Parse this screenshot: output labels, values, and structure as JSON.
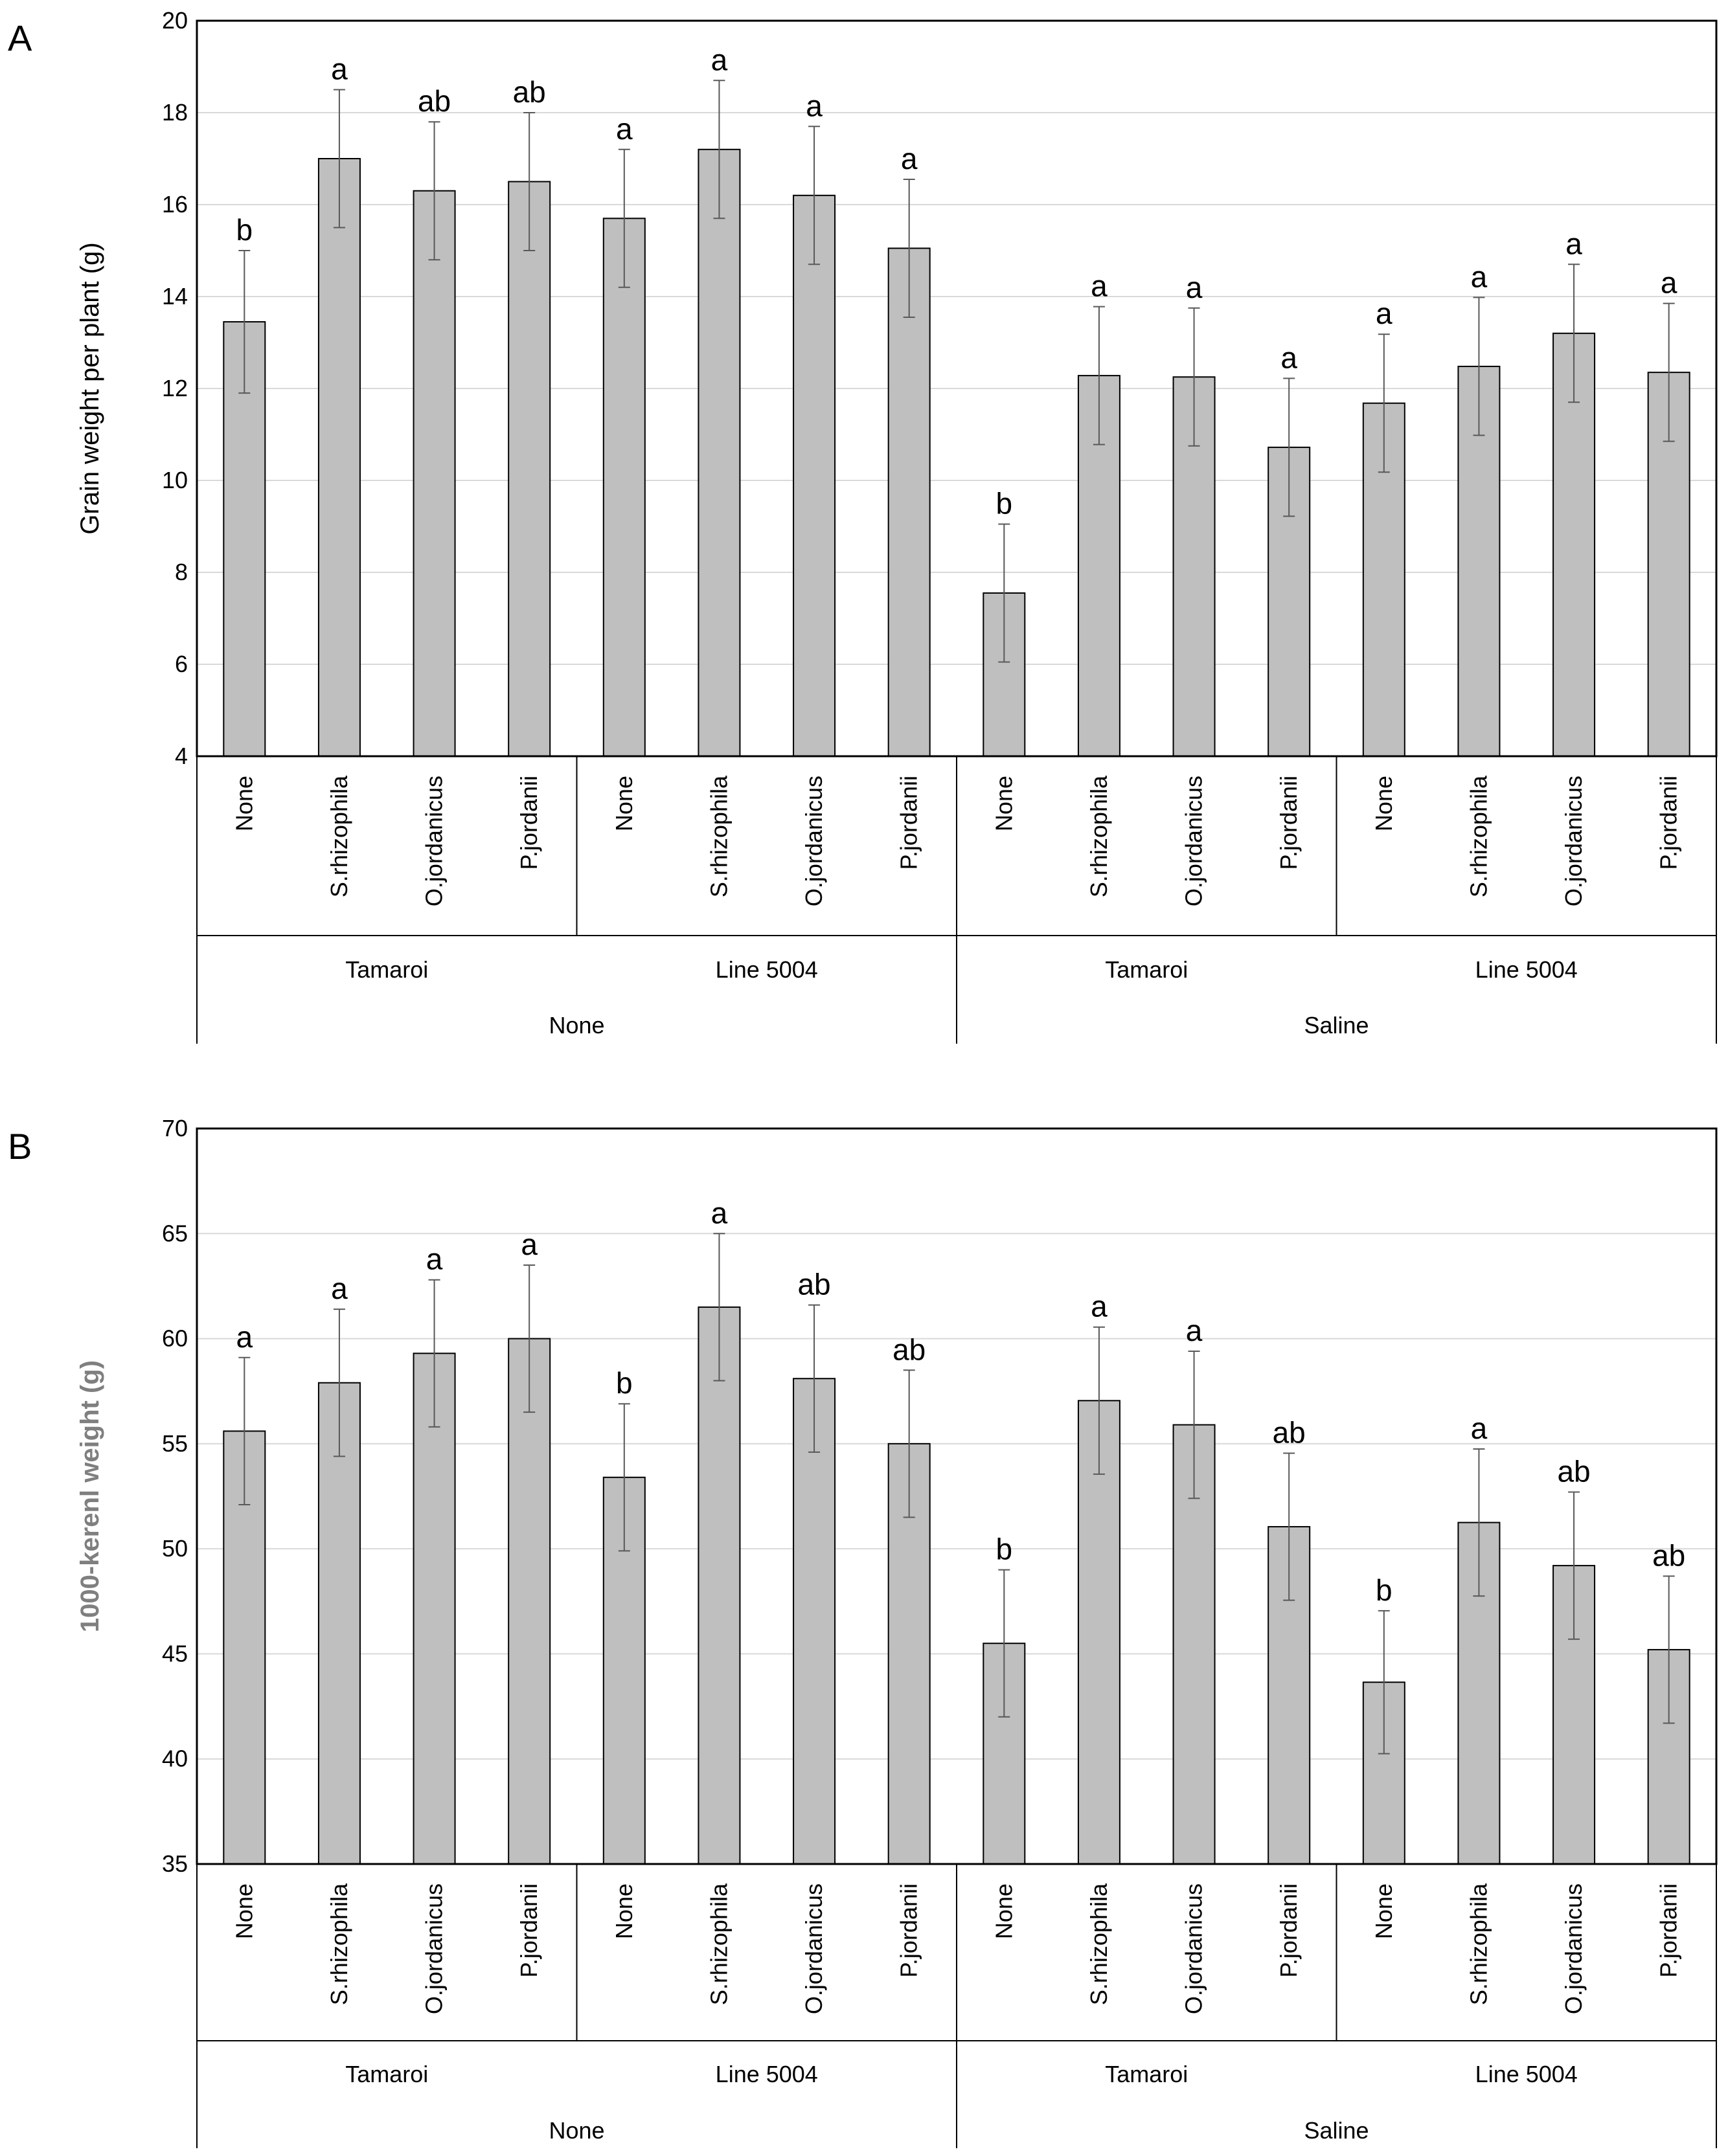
{
  "colors": {
    "bar_fill": "#bfbfbf",
    "bar_stroke": "#000000",
    "gridline": "#d9d9d9",
    "error_bar": "#595959",
    "ylabel_b": "#7f7f7f"
  },
  "chart_data": [
    {
      "panel": "A",
      "type": "bar",
      "title": "",
      "ylabel": "Grain weight per plant (g)",
      "xlabel": "",
      "ylim": [
        4,
        20
      ],
      "yticks": [
        4,
        6,
        8,
        10,
        12,
        14,
        16,
        18,
        20
      ],
      "grid": true,
      "categories": [
        "None",
        "S.rhizophila",
        "O.jordanicus",
        "P.jordanii",
        "None",
        "S.rhizophila",
        "O.jordanicus",
        "P.jordanii",
        "None",
        "S.rhizophila",
        "O.jordanicus",
        "P.jordanii",
        "None",
        "S.rhizophila",
        "O.jordanicus",
        "P.jordanii"
      ],
      "cultivar_groups": [
        "Tamaroi",
        "Line 5004",
        "Tamaroi",
        "Line 5004"
      ],
      "treatment_groups": [
        "None",
        "Saline"
      ],
      "values": [
        13.45,
        17.0,
        16.3,
        16.5,
        15.7,
        17.2,
        16.2,
        15.05,
        7.55,
        12.28,
        12.25,
        10.72,
        11.68,
        12.48,
        13.2,
        12.35
      ],
      "errors": [
        1.55,
        1.5,
        1.5,
        1.5,
        1.5,
        1.5,
        1.5,
        1.5,
        1.5,
        1.5,
        1.5,
        1.5,
        1.5,
        1.5,
        1.5,
        1.5
      ],
      "significance": [
        "b",
        "a",
        "ab",
        "ab",
        "a",
        "a",
        "a",
        "a",
        "b",
        "a",
        "a",
        "a",
        "a",
        "a",
        "a",
        "a"
      ]
    },
    {
      "panel": "B",
      "type": "bar",
      "title": "",
      "ylabel": "1000-kerenl weight (g)",
      "xlabel": "",
      "ylim": [
        35,
        70
      ],
      "yticks": [
        35,
        40,
        45,
        50,
        55,
        60,
        65,
        70
      ],
      "grid": true,
      "categories": [
        "None",
        "S.rhizophila",
        "O.jordanicus",
        "P.jordanii",
        "None",
        "S.rhizophila",
        "O.jordanicus",
        "P.jordanii",
        "None",
        "S.rhizophila",
        "O.jordanicus",
        "P.jordanii",
        "None",
        "S.rhizophila",
        "O.jordanicus",
        "P.jordanii"
      ],
      "cultivar_groups": [
        "Tamaroi",
        "Line 5004",
        "Tamaroi",
        "Line 5004"
      ],
      "treatment_groups": [
        "None",
        "Saline"
      ],
      "values": [
        55.6,
        57.9,
        59.3,
        60.0,
        53.4,
        61.5,
        58.1,
        55.0,
        45.5,
        57.05,
        55.9,
        51.05,
        43.65,
        51.25,
        49.2,
        45.2
      ],
      "errors": [
        3.5,
        3.5,
        3.5,
        3.5,
        3.5,
        3.5,
        3.5,
        3.5,
        3.5,
        3.5,
        3.5,
        3.5,
        3.4,
        3.5,
        3.5,
        3.5
      ],
      "significance": [
        "a",
        "a",
        "a",
        "a",
        "b",
        "a",
        "ab",
        "ab",
        "b",
        "a",
        "a",
        "ab",
        "b",
        "a",
        "ab",
        "ab"
      ]
    }
  ]
}
